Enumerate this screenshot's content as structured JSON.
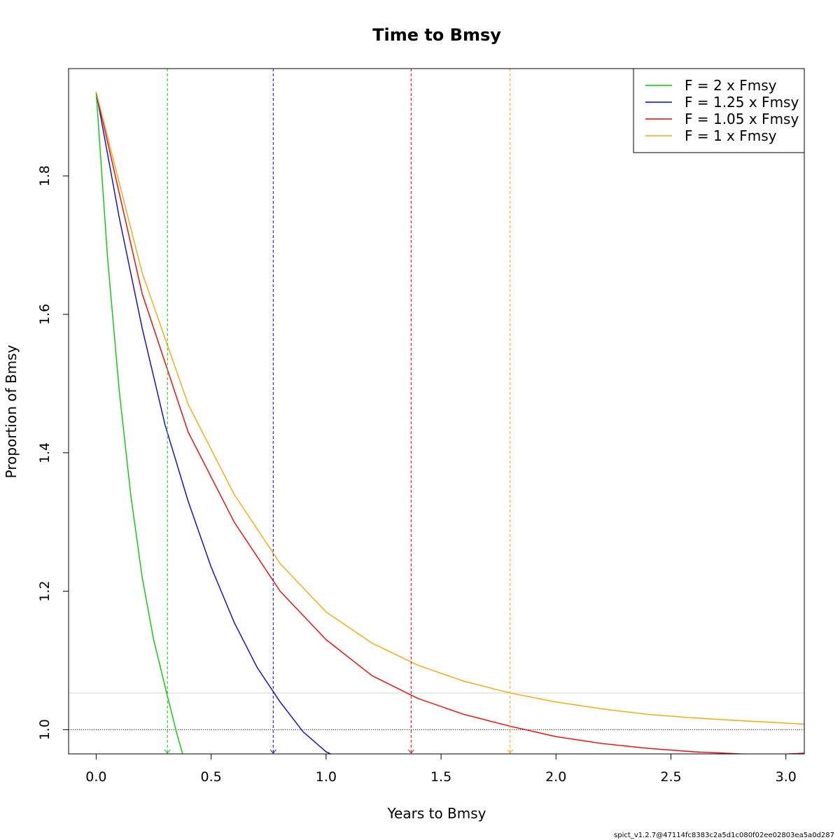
{
  "chart_data": {
    "type": "line",
    "title": "Time to Bmsy",
    "xlabel": "Years to Bmsy",
    "ylabel": "Proportion of Bmsy",
    "xlim": [
      -0.12,
      3.08
    ],
    "ylim": [
      0.965,
      1.955
    ],
    "x_ticks": [
      "0.0",
      "0.5",
      "1.0",
      "1.5",
      "2.0",
      "2.5",
      "3.0"
    ],
    "x_tick_values": [
      0.0,
      0.5,
      1.0,
      1.5,
      2.0,
      2.5,
      3.0
    ],
    "y_ticks": [
      "1.0",
      "1.2",
      "1.4",
      "1.6",
      "1.8"
    ],
    "y_tick_values": [
      1.0,
      1.2,
      1.4,
      1.6,
      1.8
    ],
    "grid": false,
    "legend_position": "top-right",
    "series": [
      {
        "name": "F = 2 x Fmsy",
        "color": "#00cd00",
        "x": [
          0.0,
          0.05,
          0.1,
          0.15,
          0.2,
          0.25,
          0.3,
          0.35,
          0.376
        ],
        "y": [
          1.921,
          1.68,
          1.49,
          1.34,
          1.22,
          1.13,
          1.062,
          0.995,
          0.965
        ],
        "marker_x": 0.31
      },
      {
        "name": "F = 1.25 x Fmsy",
        "color": "#0000ff",
        "x": [
          0.0,
          0.1,
          0.2,
          0.3,
          0.4,
          0.5,
          0.6,
          0.7,
          0.8,
          0.9,
          1.0,
          1.02
        ],
        "y": [
          1.921,
          1.74,
          1.58,
          1.44,
          1.33,
          1.235,
          1.155,
          1.09,
          1.04,
          0.997,
          0.968,
          0.965
        ],
        "marker_x": 0.77
      },
      {
        "name": "F = 1.05 x Fmsy",
        "color": "#ff0000",
        "x": [
          0.0,
          0.2,
          0.4,
          0.6,
          0.8,
          1.0,
          1.2,
          1.4,
          1.6,
          1.8,
          2.0,
          2.2,
          2.4,
          2.6,
          2.8,
          2.95,
          3.08
        ],
        "y": [
          1.921,
          1.63,
          1.43,
          1.3,
          1.2,
          1.13,
          1.078,
          1.045,
          1.022,
          1.005,
          0.99,
          0.98,
          0.973,
          0.968,
          0.965,
          0.964,
          0.966
        ],
        "marker_x": 1.37
      },
      {
        "name": "F = 1 x Fmsy",
        "color": "#ffa500",
        "x": [
          0.0,
          0.2,
          0.4,
          0.6,
          0.8,
          1.0,
          1.2,
          1.4,
          1.6,
          1.8,
          2.0,
          2.2,
          2.4,
          2.6,
          2.8,
          3.08
        ],
        "y": [
          1.921,
          1.66,
          1.47,
          1.34,
          1.24,
          1.17,
          1.125,
          1.093,
          1.07,
          1.053,
          1.04,
          1.03,
          1.022,
          1.017,
          1.013,
          1.008
        ],
        "marker_x": 1.8
      }
    ],
    "reference_lines": {
      "dotted_y": 1.0,
      "grey_y": 1.053,
      "dotted_color": "#000000",
      "grey_color": "#d3d3d3"
    }
  },
  "footer": {
    "text": "spict_v1.2.7@47114fc8383c2a5d1c080f02ee02803ea5a0d287"
  }
}
